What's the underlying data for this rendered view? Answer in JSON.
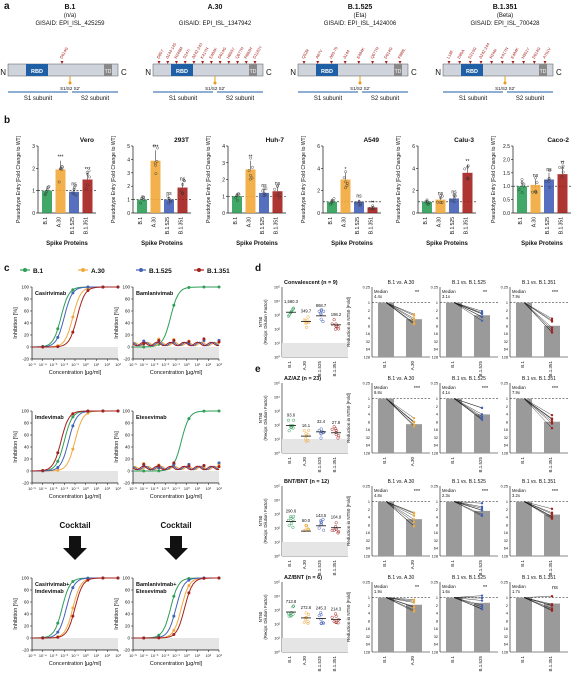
{
  "panel_letters": {
    "a": "a",
    "b": "b",
    "c": "c",
    "d": "d",
    "e": "e"
  },
  "variants": [
    {
      "title": "B.1",
      "subtitle": "(n/a)",
      "gisaid": "GISAID: EPI_ISL_425259",
      "color": "#2e9e57"
    },
    {
      "title": "A.30",
      "subtitle": "",
      "gisaid": "GISAID: EPI_ISL_1347942",
      "color": "#f2a93b"
    },
    {
      "title": "B.1.525",
      "subtitle": "(Eta)",
      "gisaid": "GISAID: EPI_ISL_1424006",
      "color": "#4461b8"
    },
    {
      "title": "B.1.351",
      "subtitle": "(Beta)",
      "gisaid": "GISAID: EPI_ISL_700428",
      "color": "#a4201d"
    }
  ],
  "spike": {
    "n": "N",
    "c": "C",
    "rbd": "RBD",
    "td": "TD",
    "s1": "S1 subunit",
    "s2": "S2 subunit",
    "site": "S1/S2 S2'"
  },
  "mutations": [
    [
      "D614G"
    ],
    [
      "D80Y",
      "Δ144-145",
      "R246M",
      "S247I",
      "Δ242-243",
      "K417N",
      "E484K",
      "D614G",
      "H655Y",
      "Q677H",
      "R682H",
      "D1163Y"
    ],
    [
      "Q52R",
      "A67V",
      "Δ69-70",
      "Δ144",
      "E484K",
      "Q677H",
      "D614G",
      "F888L"
    ],
    [
      "L18F",
      "D80A",
      "D215G",
      "Δ242-244",
      "R246I",
      "K417N",
      "E484K",
      "N501Y",
      "D614G",
      "A701V"
    ]
  ],
  "b": {
    "ylabel": "Pseudotype Entry [Fold Change to WT]",
    "xlabel": "Spike Proteins",
    "cats": [
      "B.1",
      "A.30",
      "B.1.525",
      "B.1.351"
    ],
    "panels": [
      {
        "cell": "Vero",
        "ymax": 3,
        "ticks": [
          "0",
          "1",
          "2",
          "3"
        ],
        "values": [
          1.0,
          1.95,
          0.95,
          1.5
        ],
        "sig": [
          "",
          "***",
          "ns",
          "***"
        ]
      },
      {
        "cell": "293T",
        "ymax": 5,
        "ticks": [
          "0",
          "1",
          "2",
          "3",
          "4",
          "5"
        ],
        "values": [
          1.0,
          3.9,
          1.0,
          1.9
        ],
        "sig": [
          "",
          "***",
          "ns",
          "ns"
        ]
      },
      {
        "cell": "Huh-7",
        "ymax": 4,
        "ticks": [
          "0",
          "1",
          "2",
          "3",
          "4"
        ],
        "values": [
          1.0,
          2.6,
          1.2,
          1.3
        ],
        "sig": [
          "",
          "**",
          "ns",
          "ns"
        ]
      },
      {
        "cell": "A549",
        "ymax": 6,
        "ticks": [
          "0",
          "2",
          "4",
          "6"
        ],
        "values": [
          1.0,
          3.0,
          1.0,
          0.5
        ],
        "sig": [
          "",
          "*",
          "ns",
          "**"
        ]
      },
      {
        "cell": "Calu-3",
        "ymax": 6,
        "ticks": [
          "0",
          "2",
          "4",
          "6"
        ],
        "values": [
          1.0,
          1.2,
          1.3,
          3.6
        ],
        "sig": [
          "",
          "ns",
          "ns",
          "**"
        ]
      },
      {
        "cell": "Caco-2",
        "ymax": 2.5,
        "ticks": [
          "0.0",
          "0.5",
          "1.0",
          "1.5",
          "2.0",
          "2.5"
        ],
        "values": [
          1.0,
          1.05,
          1.25,
          1.45
        ],
        "sig": [
          "",
          "ns",
          "ns",
          "**"
        ]
      }
    ]
  },
  "c": {
    "legend": [
      "B.1",
      "A.30",
      "B.1.525",
      "B.1.351"
    ],
    "ylabel": "Inhibition [%]",
    "xlabel": "Concentration [µg/ml]",
    "yticks": [
      "100",
      "80",
      "60",
      "40",
      "20",
      "0",
      "-20"
    ],
    "xticks": [
      "10⁻⁵",
      "10⁻⁴",
      "10⁻³",
      "10⁻²",
      "10⁻¹",
      "10⁰",
      "10¹",
      "10²",
      "10³"
    ],
    "panels": [
      {
        "title": "Casirivimab",
        "ec50": [
          -2.3,
          -1.2,
          -2.0,
          -0.8
        ]
      },
      {
        "title": "Bamlanivimab",
        "ec50": [
          -1.5,
          null,
          null,
          null
        ]
      },
      {
        "title": "Imdevimab",
        "ec50": [
          -2.0,
          -1.0,
          -1.6,
          -2.3
        ]
      },
      {
        "title": "Etesevimab",
        "ec50": [
          -0.5,
          null,
          null,
          null
        ]
      },
      {
        "title": "Casirivimab+\nImdevimab",
        "ec50": [
          -2.2,
          -1.2,
          -1.8,
          -1.0
        ]
      },
      {
        "title": "Bamlanivimab+\nEtesevimab",
        "ec50": [
          -1.5,
          -0.5,
          -1.0,
          -0.2
        ]
      }
    ],
    "cocktail": "Cocktail"
  },
  "de": {
    "nt50_ylabel": "NT50\n(Recipr. Dilution Factor)",
    "red_ylabel": "Reduction in NT50 [Fold]",
    "nt50_ticks": [
      "10⁵",
      "10⁴",
      "10³",
      "10²",
      "10¹",
      "10⁰"
    ],
    "red_ticks": [
      "0.25",
      "1",
      "2",
      "4",
      "8",
      "16",
      "32",
      "64",
      "128"
    ],
    "median": "Median",
    "cats": [
      "B.1",
      "A.30",
      "B.1.525",
      "B.1.351"
    ],
    "comparisons": [
      "B.1 vs. A.30",
      "B.1 vs. B.1.525",
      "B.1 vs. B.1.351"
    ],
    "panels": [
      {
        "title": "Convalescent (n = 9)",
        "nt": [
          "1,580.3",
          "349.7",
          "868.7",
          "198.2"
        ],
        "ntv": [
          1580.3,
          349.7,
          868.7,
          198.2
        ],
        "fold": [
          "4.4x",
          "3.1x",
          "7.9x"
        ],
        "foldv": [
          4.4,
          3.1,
          7.9
        ],
        "sig": [
          "**",
          "**",
          "***"
        ]
      },
      {
        "title": "AZ/AZ (n = 23)",
        "nt": [
          "93.6",
          "16.1",
          "32.4",
          "27.8"
        ],
        "ntv": [
          93.6,
          16.1,
          32.4,
          27.8
        ],
        "fold": [
          "9.8x",
          "4.1x",
          "7.9x"
        ],
        "foldv": [
          9.8,
          4.1,
          7.9
        ],
        "sig": [
          "***",
          "***",
          "***"
        ]
      },
      {
        "title": "BNT/BNT (n = 12)",
        "nt": [
          "290.6",
          "60.0",
          "143.5",
          "104.9"
        ],
        "ntv": [
          290.6,
          60.0,
          143.5,
          104.9
        ],
        "fold": [
          "4.8x",
          "2.3x",
          "3.2x"
        ],
        "foldv": [
          4.8,
          2.3,
          3.2
        ],
        "sig": [
          "***",
          "***",
          "***"
        ]
      },
      {
        "title": "AZ/BNT (n = 6)",
        "nt": [
          "713.8",
          "272.6",
          "245.3",
          "214.3"
        ],
        "ntv": [
          713.8,
          272.6,
          245.3,
          214.3
        ],
        "fold": [
          "1.9x",
          "1.6x",
          "1.7x"
        ],
        "foldv": [
          1.9,
          1.6,
          1.7
        ],
        "sig": [
          "**",
          "**",
          "ns"
        ]
      }
    ]
  }
}
